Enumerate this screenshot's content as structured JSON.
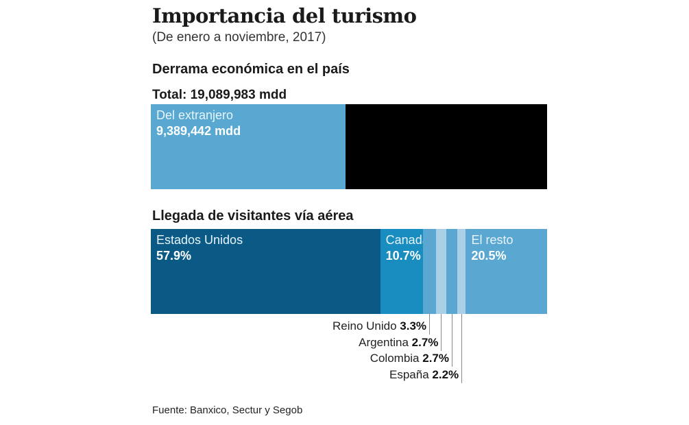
{
  "title": "Importancia del turismo",
  "subtitle": "(De enero a noviembre, 2017)",
  "source": "Fuente: Banxico, Sectur y Segob",
  "chart_data": [
    {
      "type": "bar",
      "title": "Derrama económica en el país",
      "total_label": "Total: 19,089,983 mdd",
      "total": 19089983,
      "segments": [
        {
          "name": "Del extranjero",
          "value": 9389442,
          "value_label": "9,389,442 mdd",
          "color": "#58a8d2"
        },
        {
          "name": "",
          "value": 9700541,
          "value_label": "",
          "color": "#000000"
        }
      ]
    },
    {
      "type": "bar",
      "title": "Llegada de visitantes vía aérea",
      "segments": [
        {
          "name": "Estados Unidos",
          "value": 57.9,
          "value_label": "57.9%",
          "color": "#0b5a86",
          "inside": true
        },
        {
          "name": "Canadá",
          "value": 10.7,
          "value_label": "10.7%",
          "color": "#1a8dc0",
          "inside": true
        },
        {
          "name": "Reino Unido",
          "value": 3.3,
          "value_label": "3.3%",
          "color": "#5aa8d1",
          "inside": false
        },
        {
          "name": "Argentina",
          "value": 2.7,
          "value_label": "2.7%",
          "color": "#a9d0e7",
          "inside": false
        },
        {
          "name": "Colombia",
          "value": 2.7,
          "value_label": "2.7%",
          "color": "#5aa8d1",
          "inside": false
        },
        {
          "name": "España",
          "value": 2.2,
          "value_label": "2.2%",
          "color": "#a9d0e7",
          "inside": false
        },
        {
          "name": "El resto",
          "value": 20.5,
          "value_label": "20.5%",
          "color": "#5aa8d1",
          "inside": true
        }
      ]
    }
  ]
}
